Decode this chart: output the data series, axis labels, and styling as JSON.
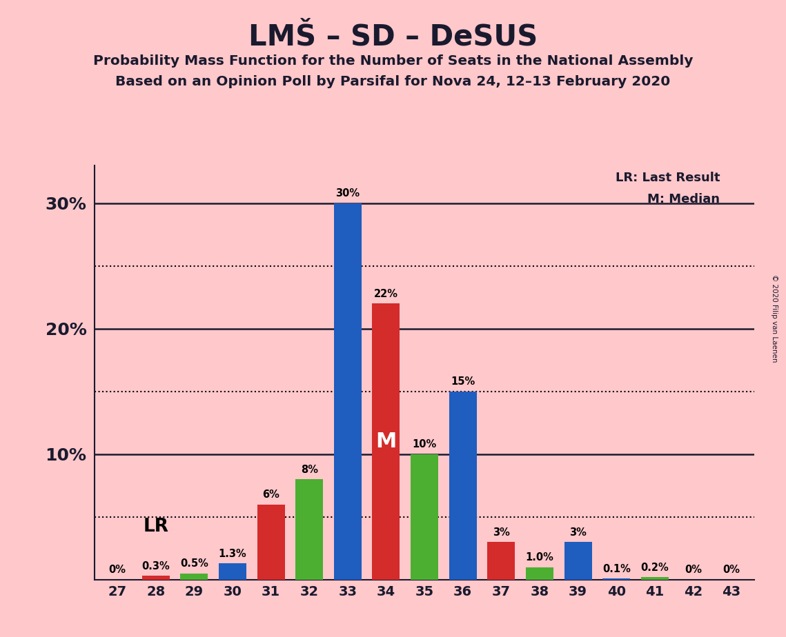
{
  "title": "LMŠ – SD – DeSUS",
  "subtitle1": "Probability Mass Function for the Number of Seats in the National Assembly",
  "subtitle2": "Based on an Opinion Poll by Parsifal for Nova 24, 12–13 February 2020",
  "copyright": "© 2020 Filip van Laenen",
  "seats": [
    27,
    28,
    29,
    30,
    31,
    32,
    33,
    34,
    35,
    36,
    37,
    38,
    39,
    40,
    41,
    42,
    43
  ],
  "blue_values": [
    0.0,
    0.0,
    0.0,
    1.3,
    0.0,
    0.0,
    30.0,
    0.0,
    0.0,
    15.0,
    0.0,
    0.0,
    3.0,
    0.1,
    0.0,
    0.0,
    0.0
  ],
  "red_values": [
    0.0,
    0.3,
    0.0,
    0.0,
    6.0,
    0.0,
    0.0,
    22.0,
    0.0,
    0.0,
    3.0,
    0.0,
    0.0,
    0.0,
    0.0,
    0.0,
    0.0
  ],
  "green_values": [
    0.0,
    0.0,
    0.5,
    0.0,
    0.0,
    8.0,
    0.0,
    0.0,
    10.0,
    0.0,
    0.0,
    1.0,
    0.0,
    0.0,
    0.2,
    0.0,
    0.0
  ],
  "bar_labels": [
    "0%",
    "0.3%",
    "0.5%",
    "1.3%",
    "6%",
    "8%",
    "30%",
    "22%",
    "10%",
    "15%",
    "3%",
    "1.0%",
    "3%",
    "0.1%",
    "0.2%",
    "0%",
    "0%"
  ],
  "blue_color": "#1f5dbf",
  "red_color": "#d42b2b",
  "green_color": "#4caf32",
  "background_color": "#ffc8cb",
  "lr_seat": 28,
  "median_seat": 34,
  "ylim": [
    0,
    33
  ],
  "solid_hlines": [
    10,
    20,
    30
  ],
  "dotted_hlines": [
    5,
    15,
    25
  ]
}
